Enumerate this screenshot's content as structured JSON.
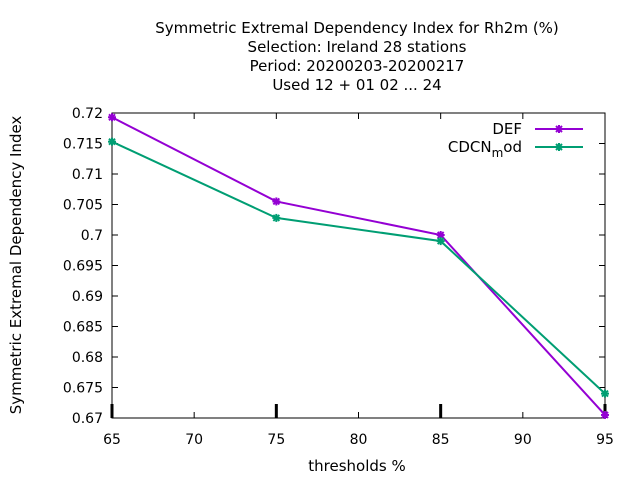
{
  "chart_data": {
    "type": "line",
    "title_lines": [
      "Symmetric Extremal Dependency Index  for Rh2m (%)",
      "Selection: Ireland      28 stations",
      "Period: 20200203-20200217",
      "Used  12 + 01 02 ... 24"
    ],
    "xlabel": "thresholds %",
    "ylabel": "Symmetric Extremal Dependency Index",
    "xlim": [
      65,
      95
    ],
    "ylim": [
      0.67,
      0.72
    ],
    "x_ticks": [
      65,
      70,
      75,
      80,
      85,
      90,
      95
    ],
    "x_tick_labels": [
      "65",
      "70",
      "75",
      "80",
      "85",
      "90",
      "95"
    ],
    "y_ticks": [
      0.67,
      0.675,
      0.68,
      0.685,
      0.69,
      0.695,
      0.7,
      0.705,
      0.71,
      0.715,
      0.72
    ],
    "y_tick_labels": [
      "0.67",
      "0.675",
      "0.68",
      "0.685",
      "0.69",
      "0.695",
      "0.7",
      "0.705",
      "0.71",
      "0.715",
      "0.72"
    ],
    "legend_position": "top-right",
    "x": [
      65,
      75,
      85,
      95
    ],
    "series": [
      {
        "name": "DEF",
        "legend_main": "DEF",
        "legend_sub": "",
        "legend_tail": "",
        "color": "#9400d3",
        "values": [
          0.7193,
          0.7055,
          0.7,
          0.6705
        ]
      },
      {
        "name": "CDCN_mod",
        "legend_main": "CDCN",
        "legend_sub": "m",
        "legend_tail": "od",
        "color": "#009e73",
        "values": [
          0.7153,
          0.7028,
          0.699,
          0.674
        ]
      }
    ]
  }
}
